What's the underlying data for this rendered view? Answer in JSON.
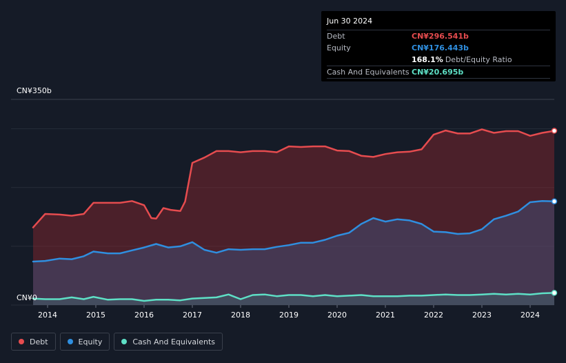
{
  "tooltip": {
    "date": "Jun 30 2024",
    "rows": [
      {
        "label": "Debt",
        "value": "CN¥296.541b",
        "color": "#e64c4f"
      },
      {
        "label": "Equity",
        "value": "CN¥176.443b",
        "color": "#2f8fe0"
      },
      {
        "label": "",
        "value": "168.1%",
        "suffix": "Debt/Equity Ratio",
        "color": "#ffffff"
      },
      {
        "label": "Cash And Equivalents",
        "value": "CN¥20.695b",
        "color": "#5ee0c6"
      }
    ]
  },
  "legend": [
    {
      "label": "Debt",
      "color": "#e64c4f"
    },
    {
      "label": "Equity",
      "color": "#2f8fe0"
    },
    {
      "label": "Cash And Equivalents",
      "color": "#5ee0c6"
    }
  ],
  "chart_data": {
    "type": "area",
    "title": "",
    "xlabel": "",
    "ylabel": "",
    "y_top_label": "CN¥350b",
    "y_bottom_label": "CN¥0",
    "ylim": [
      0,
      350
    ],
    "xlim": [
      2013.7,
      2024.5
    ],
    "x_ticks": [
      "2014",
      "2015",
      "2016",
      "2017",
      "2018",
      "2019",
      "2020",
      "2021",
      "2022",
      "2023",
      "2024"
    ],
    "grid": true,
    "series": [
      {
        "name": "Debt",
        "color": "#e64c4f",
        "x": [
          2013.7,
          2013.95,
          2014.25,
          2014.5,
          2014.75,
          2014.95,
          2015.25,
          2015.5,
          2015.75,
          2016.0,
          2016.15,
          2016.25,
          2016.4,
          2016.55,
          2016.75,
          2016.85,
          2017.0,
          2017.25,
          2017.5,
          2017.75,
          2018.0,
          2018.25,
          2018.5,
          2018.75,
          2019.0,
          2019.25,
          2019.5,
          2019.75,
          2020.0,
          2020.25,
          2020.5,
          2020.75,
          2021.0,
          2021.25,
          2021.5,
          2021.75,
          2022.0,
          2022.25,
          2022.5,
          2022.75,
          2023.0,
          2023.25,
          2023.5,
          2023.75,
          2024.0,
          2024.25,
          2024.5
        ],
        "values": [
          132,
          155,
          154,
          152,
          155,
          174,
          174,
          174,
          177,
          170,
          148,
          147,
          165,
          162,
          160,
          176,
          242,
          251,
          262,
          262,
          260,
          262,
          262,
          260,
          270,
          269,
          270,
          270,
          263,
          262,
          254,
          252,
          257,
          260,
          261,
          265,
          290,
          297,
          292,
          292,
          299,
          293,
          296,
          296,
          288,
          293,
          296.5
        ]
      },
      {
        "name": "Equity",
        "color": "#2f8fe0",
        "x": [
          2013.7,
          2013.95,
          2014.25,
          2014.5,
          2014.75,
          2014.95,
          2015.25,
          2015.5,
          2015.75,
          2016.0,
          2016.25,
          2016.5,
          2016.75,
          2017.0,
          2017.25,
          2017.5,
          2017.75,
          2018.0,
          2018.25,
          2018.5,
          2018.75,
          2019.0,
          2019.25,
          2019.5,
          2019.75,
          2020.0,
          2020.25,
          2020.5,
          2020.75,
          2021.0,
          2021.25,
          2021.5,
          2021.75,
          2022.0,
          2022.25,
          2022.5,
          2022.75,
          2023.0,
          2023.25,
          2023.5,
          2023.75,
          2024.0,
          2024.25,
          2024.5
        ],
        "values": [
          74,
          75,
          79,
          78,
          83,
          91,
          88,
          88,
          93,
          98,
          104,
          98,
          100,
          107,
          94,
          89,
          95,
          94,
          95,
          95,
          99,
          102,
          106,
          106,
          111,
          118,
          123,
          138,
          148,
          142,
          146,
          144,
          138,
          125,
          124,
          121,
          122,
          129,
          146,
          152,
          159,
          175,
          177,
          176.4
        ]
      },
      {
        "name": "Cash And Equivalents",
        "color": "#5ee0c6",
        "x": [
          2013.7,
          2013.95,
          2014.25,
          2014.5,
          2014.75,
          2014.95,
          2015.25,
          2015.5,
          2015.75,
          2016.0,
          2016.25,
          2016.5,
          2016.75,
          2017.0,
          2017.25,
          2017.5,
          2017.75,
          2018.0,
          2018.25,
          2018.5,
          2018.75,
          2019.0,
          2019.25,
          2019.5,
          2019.75,
          2020.0,
          2020.25,
          2020.5,
          2020.75,
          2021.0,
          2021.25,
          2021.5,
          2021.75,
          2022.0,
          2022.25,
          2022.5,
          2022.75,
          2023.0,
          2023.25,
          2023.5,
          2023.75,
          2024.0,
          2024.25,
          2024.5
        ],
        "values": [
          11,
          10,
          10,
          13,
          10,
          14,
          9,
          10,
          10,
          7,
          9,
          9,
          8,
          11,
          12,
          13,
          18,
          10,
          17,
          18,
          15,
          17,
          17,
          15,
          17,
          15,
          16,
          17,
          15,
          15,
          15,
          16,
          16,
          17,
          18,
          17,
          17,
          18,
          19,
          18,
          19,
          18,
          20,
          20.7
        ]
      }
    ]
  }
}
